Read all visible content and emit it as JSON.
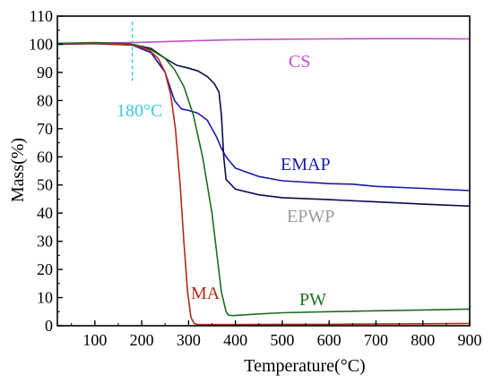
{
  "chart_data": {
    "type": "line",
    "title": "",
    "xlabel": "Temperature(°C)",
    "ylabel": "Mass(%)",
    "xlim": [
      20,
      900
    ],
    "ylim": [
      0,
      110
    ],
    "x_ticks": [
      100,
      200,
      300,
      400,
      500,
      600,
      700,
      800,
      900
    ],
    "y_ticks": [
      0,
      10,
      20,
      30,
      40,
      50,
      60,
      70,
      80,
      90,
      100,
      110
    ],
    "grid": false,
    "series": [
      {
        "name": "CS",
        "color": "#c050c8",
        "x": [
          20,
          100,
          200,
          300,
          400,
          500,
          600,
          700,
          800,
          900
        ],
        "y": [
          100.2,
          100.4,
          100.7,
          101.2,
          101.6,
          101.8,
          101.9,
          102.0,
          102.0,
          101.9
        ]
      },
      {
        "name": "EMAP",
        "color": "#1a1aa8",
        "x": [
          20,
          100,
          180,
          220,
          250,
          270,
          285,
          300,
          320,
          340,
          360,
          370,
          380,
          400,
          450,
          500,
          600,
          650,
          700,
          800,
          900
        ],
        "y": [
          100.0,
          100.2,
          99.7,
          97.0,
          90.0,
          80.0,
          77.0,
          76.5,
          75.5,
          73.0,
          67.0,
          63.0,
          60.0,
          56.0,
          53.0,
          51.5,
          50.5,
          50.3,
          49.5,
          48.8,
          48.0
        ]
      },
      {
        "name": "EPWP",
        "color": "#0a0a50",
        "x": [
          20,
          100,
          180,
          220,
          250,
          275,
          300,
          320,
          340,
          355,
          365,
          370,
          375,
          380,
          400,
          450,
          500,
          600,
          700,
          800,
          900
        ],
        "y": [
          100.3,
          100.5,
          100.0,
          98.5,
          95.0,
          92.5,
          91.5,
          90.5,
          88.5,
          86.0,
          83.0,
          75.0,
          60.0,
          52.0,
          48.5,
          46.5,
          45.5,
          44.8,
          44.0,
          43.2,
          42.5
        ]
      },
      {
        "name": "PW",
        "color": "#1e6e1e",
        "x": [
          20,
          100,
          180,
          220,
          250,
          270,
          290,
          310,
          330,
          350,
          370,
          380,
          385,
          395,
          450,
          500,
          600,
          700,
          800,
          900
        ],
        "y": [
          100.3,
          100.6,
          100.1,
          98.0,
          95.0,
          91.0,
          85.0,
          75.0,
          60.0,
          40.0,
          12.0,
          5.0,
          3.8,
          3.6,
          4.2,
          4.6,
          5.0,
          5.3,
          5.6,
          5.9
        ]
      },
      {
        "name": "MA",
        "color": "#b02c18",
        "x": [
          20,
          100,
          180,
          215,
          235,
          250,
          262,
          272,
          282,
          290,
          298,
          305,
          312,
          320,
          400,
          500,
          600,
          700,
          800,
          900
        ],
        "y": [
          100.2,
          100.3,
          99.8,
          98.0,
          95.0,
          90.0,
          82.0,
          70.0,
          50.0,
          30.0,
          12.0,
          3.0,
          0.8,
          0.4,
          0.4,
          0.5,
          0.5,
          0.6,
          0.7,
          0.8
        ]
      }
    ],
    "annotations": [
      {
        "text": "180°C",
        "x": 180,
        "color": "#3cc8e0"
      }
    ]
  },
  "labels": {
    "cs": "CS",
    "emap": "EMAP",
    "epwp": "EPWP",
    "pw": "PW",
    "ma": "MA",
    "marker": "180°C"
  }
}
